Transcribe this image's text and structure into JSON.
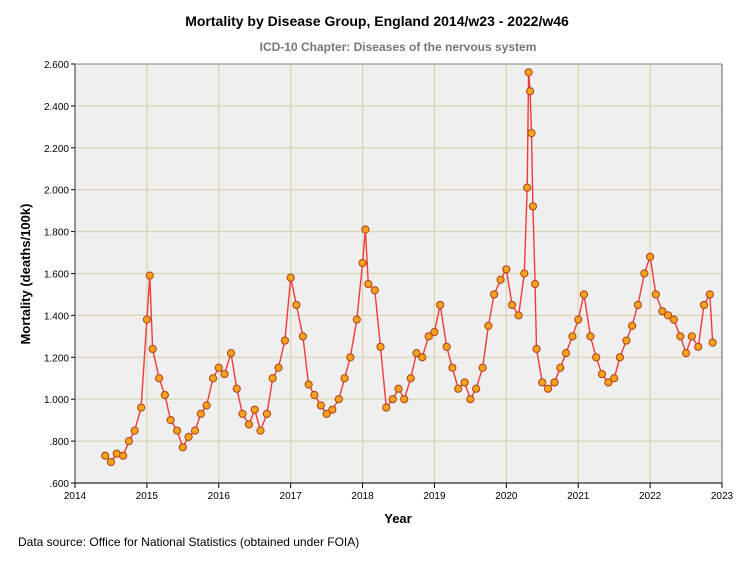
{
  "chart_data": {
    "type": "line",
    "title": "Mortality by Disease Group, England 2014/w23 - 2022/w46",
    "subtitle": "ICD-10 Chapter: Diseases of the nervous system",
    "xlabel": "Year",
    "ylabel": "Mortality (deaths/100k)",
    "xlim": [
      2014,
      2023
    ],
    "ylim": [
      0.6,
      2.6
    ],
    "xticks": [
      "2014",
      "2015",
      "2016",
      "2017",
      "2018",
      "2019",
      "2020",
      "2021",
      "2022",
      "2023"
    ],
    "yticks": [
      ".600",
      ".800",
      "1.000",
      "1.200",
      "1.400",
      "1.600",
      "1.800",
      "2.000",
      "2.200",
      "2.400",
      "2.600"
    ],
    "grid": true,
    "series": [
      {
        "name": "Mortality",
        "points": [
          [
            2014.42,
            0.73
          ],
          [
            2014.5,
            0.7
          ],
          [
            2014.58,
            0.74
          ],
          [
            2014.67,
            0.73
          ],
          [
            2014.75,
            0.8
          ],
          [
            2014.83,
            0.85
          ],
          [
            2014.92,
            0.96
          ],
          [
            2015.0,
            1.38
          ],
          [
            2015.04,
            1.59
          ],
          [
            2015.08,
            1.24
          ],
          [
            2015.17,
            1.1
          ],
          [
            2015.25,
            1.02
          ],
          [
            2015.33,
            0.9
          ],
          [
            2015.42,
            0.85
          ],
          [
            2015.5,
            0.77
          ],
          [
            2015.58,
            0.82
          ],
          [
            2015.67,
            0.85
          ],
          [
            2015.75,
            0.93
          ],
          [
            2015.83,
            0.97
          ],
          [
            2015.92,
            1.1
          ],
          [
            2016.0,
            1.15
          ],
          [
            2016.08,
            1.12
          ],
          [
            2016.17,
            1.22
          ],
          [
            2016.25,
            1.05
          ],
          [
            2016.33,
            0.93
          ],
          [
            2016.42,
            0.88
          ],
          [
            2016.5,
            0.95
          ],
          [
            2016.58,
            0.85
          ],
          [
            2016.67,
            0.93
          ],
          [
            2016.75,
            1.1
          ],
          [
            2016.83,
            1.15
          ],
          [
            2016.92,
            1.28
          ],
          [
            2017.0,
            1.58
          ],
          [
            2017.08,
            1.45
          ],
          [
            2017.17,
            1.3
          ],
          [
            2017.25,
            1.07
          ],
          [
            2017.33,
            1.02
          ],
          [
            2017.42,
            0.97
          ],
          [
            2017.5,
            0.93
          ],
          [
            2017.58,
            0.95
          ],
          [
            2017.67,
            1.0
          ],
          [
            2017.75,
            1.1
          ],
          [
            2017.83,
            1.2
          ],
          [
            2017.92,
            1.38
          ],
          [
            2018.0,
            1.65
          ],
          [
            2018.04,
            1.81
          ],
          [
            2018.08,
            1.55
          ],
          [
            2018.17,
            1.52
          ],
          [
            2018.25,
            1.25
          ],
          [
            2018.33,
            0.96
          ],
          [
            2018.42,
            1.0
          ],
          [
            2018.5,
            1.05
          ],
          [
            2018.58,
            1.0
          ],
          [
            2018.67,
            1.1
          ],
          [
            2018.75,
            1.22
          ],
          [
            2018.83,
            1.2
          ],
          [
            2018.92,
            1.3
          ],
          [
            2019.0,
            1.32
          ],
          [
            2019.08,
            1.45
          ],
          [
            2019.17,
            1.25
          ],
          [
            2019.25,
            1.15
          ],
          [
            2019.33,
            1.05
          ],
          [
            2019.42,
            1.08
          ],
          [
            2019.5,
            1.0
          ],
          [
            2019.58,
            1.05
          ],
          [
            2019.67,
            1.15
          ],
          [
            2019.75,
            1.35
          ],
          [
            2019.83,
            1.5
          ],
          [
            2019.92,
            1.57
          ],
          [
            2020.0,
            1.62
          ],
          [
            2020.08,
            1.45
          ],
          [
            2020.17,
            1.4
          ],
          [
            2020.25,
            1.6
          ],
          [
            2020.29,
            2.01
          ],
          [
            2020.31,
            2.56
          ],
          [
            2020.33,
            2.47
          ],
          [
            2020.35,
            2.27
          ],
          [
            2020.37,
            1.92
          ],
          [
            2020.4,
            1.55
          ],
          [
            2020.42,
            1.24
          ],
          [
            2020.5,
            1.08
          ],
          [
            2020.58,
            1.05
          ],
          [
            2020.67,
            1.08
          ],
          [
            2020.75,
            1.15
          ],
          [
            2020.83,
            1.22
          ],
          [
            2020.92,
            1.3
          ],
          [
            2021.0,
            1.38
          ],
          [
            2021.08,
            1.5
          ],
          [
            2021.17,
            1.3
          ],
          [
            2021.25,
            1.2
          ],
          [
            2021.33,
            1.12
          ],
          [
            2021.42,
            1.08
          ],
          [
            2021.5,
            1.1
          ],
          [
            2021.58,
            1.2
          ],
          [
            2021.67,
            1.28
          ],
          [
            2021.75,
            1.35
          ],
          [
            2021.83,
            1.45
          ],
          [
            2021.92,
            1.6
          ],
          [
            2022.0,
            1.68
          ],
          [
            2022.08,
            1.5
          ],
          [
            2022.17,
            1.42
          ],
          [
            2022.25,
            1.4
          ],
          [
            2022.33,
            1.38
          ],
          [
            2022.42,
            1.3
          ],
          [
            2022.5,
            1.22
          ],
          [
            2022.58,
            1.3
          ],
          [
            2022.67,
            1.25
          ],
          [
            2022.75,
            1.45
          ],
          [
            2022.83,
            1.5
          ],
          [
            2022.87,
            1.27
          ]
        ]
      }
    ],
    "line_color": "#f03a3a",
    "marker_fill": "#f7a21b",
    "marker_stroke": "#b0401a",
    "plot_bg": "#efefef",
    "grid_color": "#d9d5b3"
  },
  "footer": {
    "source": "Data source: Office for National Statistics (obtained under FOIA)"
  }
}
